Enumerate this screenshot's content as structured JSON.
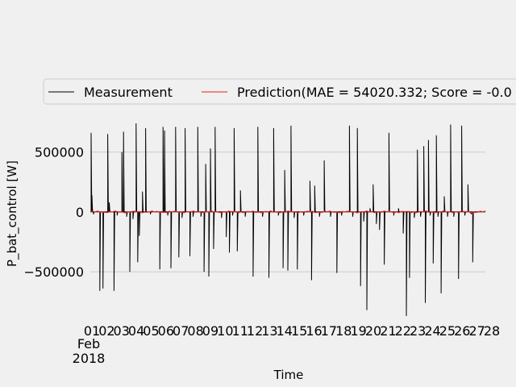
{
  "chart_data": {
    "type": "line",
    "xlabel": "Time",
    "ylabel": "P_bat_control [W]",
    "ylim": [
      -870000,
      760000
    ],
    "yticks": [
      500000,
      0,
      -500000
    ],
    "ytick_labels": [
      "500000",
      "0",
      "−500000"
    ],
    "x_ticks": [
      "01",
      "02",
      "03",
      "04",
      "05",
      "06",
      "07",
      "08",
      "09",
      "10",
      "11",
      "12",
      "13",
      "14",
      "15",
      "16",
      "17",
      "18",
      "19",
      "20",
      "21",
      "22",
      "23",
      "24",
      "25",
      "26",
      "27",
      "28"
    ],
    "x_sublabel_month": "Feb",
    "x_sublabel_year": "2018",
    "grid": "horizontal",
    "legend_position": "top",
    "series": [
      {
        "name": "Measurement",
        "color": "#000000",
        "spikes": [
          [
            1.05,
            660000
          ],
          [
            1.1,
            140000
          ],
          [
            1.2,
            -20000
          ],
          [
            1.6,
            -660000
          ],
          [
            1.8,
            -640000
          ],
          [
            2.1,
            650000
          ],
          [
            2.2,
            80000
          ],
          [
            2.5,
            -660000
          ],
          [
            2.7,
            -30000
          ],
          [
            3.0,
            500000
          ],
          [
            3.1,
            670000
          ],
          [
            3.3,
            -40000
          ],
          [
            3.5,
            -500000
          ],
          [
            3.7,
            -60000
          ],
          [
            3.9,
            740000
          ],
          [
            4.0,
            -420000
          ],
          [
            4.1,
            -200000
          ],
          [
            4.3,
            170000
          ],
          [
            4.5,
            700000
          ],
          [
            4.8,
            -20000
          ],
          [
            5.4,
            -480000
          ],
          [
            5.6,
            710000
          ],
          [
            5.7,
            680000
          ],
          [
            5.9,
            -30000
          ],
          [
            6.1,
            -470000
          ],
          [
            6.4,
            710000
          ],
          [
            6.6,
            -380000
          ],
          [
            6.8,
            -50000
          ],
          [
            7.0,
            700000
          ],
          [
            7.3,
            -370000
          ],
          [
            7.5,
            -40000
          ],
          [
            7.8,
            710000
          ],
          [
            8.0,
            -40000
          ],
          [
            8.2,
            -500000
          ],
          [
            8.3,
            400000
          ],
          [
            8.5,
            -540000
          ],
          [
            8.6,
            530000
          ],
          [
            8.8,
            -310000
          ],
          [
            8.9,
            710000
          ],
          [
            9.3,
            -50000
          ],
          [
            9.6,
            -210000
          ],
          [
            9.8,
            -340000
          ],
          [
            10.0,
            -30000
          ],
          [
            10.1,
            700000
          ],
          [
            10.3,
            -330000
          ],
          [
            10.5,
            180000
          ],
          [
            10.8,
            -40000
          ],
          [
            11.3,
            -540000
          ],
          [
            11.6,
            710000
          ],
          [
            11.9,
            -40000
          ],
          [
            12.3,
            -550000
          ],
          [
            12.6,
            700000
          ],
          [
            12.9,
            -30000
          ],
          [
            13.2,
            -470000
          ],
          [
            13.3,
            350000
          ],
          [
            13.5,
            -490000
          ],
          [
            13.7,
            720000
          ],
          [
            13.9,
            -50000
          ],
          [
            14.1,
            -480000
          ],
          [
            14.5,
            -30000
          ],
          [
            14.9,
            260000
          ],
          [
            15.0,
            -570000
          ],
          [
            15.2,
            220000
          ],
          [
            15.5,
            -40000
          ],
          [
            15.8,
            430000
          ],
          [
            16.2,
            -40000
          ],
          [
            16.6,
            -510000
          ],
          [
            16.9,
            -30000
          ],
          [
            17.4,
            720000
          ],
          [
            17.6,
            -40000
          ],
          [
            17.9,
            700000
          ],
          [
            18.1,
            -620000
          ],
          [
            18.3,
            -80000
          ],
          [
            18.5,
            -820000
          ],
          [
            18.7,
            30000
          ],
          [
            18.9,
            230000
          ],
          [
            19.1,
            -100000
          ],
          [
            19.3,
            -150000
          ],
          [
            19.6,
            -440000
          ],
          [
            19.9,
            660000
          ],
          [
            20.2,
            -30000
          ],
          [
            20.5,
            30000
          ],
          [
            20.8,
            -180000
          ],
          [
            21.0,
            -870000
          ],
          [
            21.2,
            -550000
          ],
          [
            21.5,
            -50000
          ],
          [
            21.7,
            520000
          ],
          [
            21.9,
            -40000
          ],
          [
            22.1,
            550000
          ],
          [
            22.2,
            -760000
          ],
          [
            22.4,
            600000
          ],
          [
            22.5,
            -30000
          ],
          [
            22.7,
            -430000
          ],
          [
            22.9,
            640000
          ],
          [
            23.0,
            -40000
          ],
          [
            23.2,
            -680000
          ],
          [
            23.4,
            130000
          ],
          [
            23.6,
            -40000
          ],
          [
            23.8,
            730000
          ],
          [
            24.0,
            -40000
          ],
          [
            24.3,
            -560000
          ],
          [
            24.5,
            720000
          ],
          [
            24.7,
            -30000
          ],
          [
            24.9,
            230000
          ],
          [
            25.1,
            -20000
          ],
          [
            25.2,
            -420000
          ]
        ]
      },
      {
        "name": "Prediction(MAE = 54020.332; Score = -0.0",
        "color": "#e5241b"
      }
    ]
  }
}
